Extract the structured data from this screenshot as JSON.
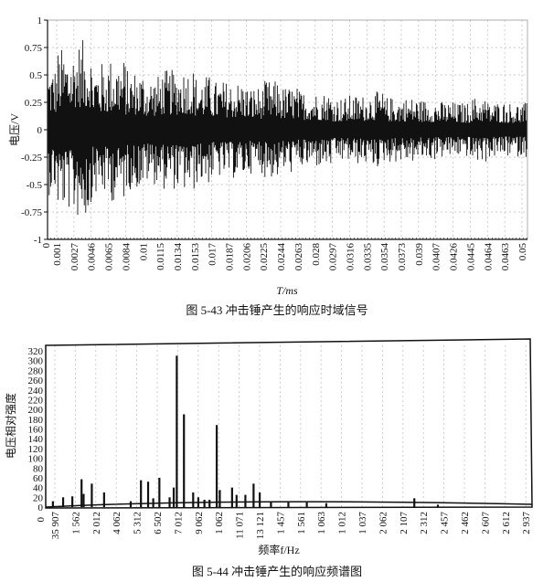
{
  "chart_data": [
    {
      "type": "line",
      "caption": "图 5-43   冲击锤产生的响应时域信号",
      "xlabel": "T/ms",
      "ylabel": "电压/V",
      "ylim": [
        -1,
        1
      ],
      "y_ticks": [
        "1",
        "0.75",
        "0.5",
        "0.25",
        "0",
        "-0.25",
        "-0.5",
        "-0.75",
        "-1"
      ],
      "x_ticks": [
        "0",
        "0.001",
        "0.0027",
        "0.0046",
        "0.0065",
        "0.0084",
        "0.01",
        "0.0115",
        "0.0134",
        "0.0153",
        "0.017",
        "0.0187",
        "0.0206",
        "0.0225",
        "0.0244",
        "0.0263",
        "0.028",
        "0.0297",
        "0.0316",
        "0.0335",
        "0.0354",
        "0.0373",
        "0.039",
        "0.0407",
        "0.0426",
        "0.0445",
        "0.0464",
        "0.0463",
        "0.05"
      ],
      "grid": true,
      "signal_envelope_by_tick": [
        0.6,
        0.75,
        0.82,
        0.62,
        0.66,
        0.55,
        0.5,
        0.55,
        0.58,
        0.5,
        0.45,
        0.45,
        0.4,
        0.45,
        0.4,
        0.36,
        0.35,
        0.3,
        0.32,
        0.35,
        0.3,
        0.3,
        0.28,
        0.26,
        0.25,
        0.3,
        0.26,
        0.25
      ],
      "color": "#111111"
    },
    {
      "type": "bar",
      "caption": "图 5-44   冲击锤产生的响应频谱图",
      "xlabel": "频率f/Hz",
      "ylabel": "电压相对强度",
      "ylim": [
        0,
        320
      ],
      "y_ticks": [
        "320",
        "300",
        "280",
        "260",
        "240",
        "220",
        "200",
        "180",
        "160",
        "140",
        "120",
        "100",
        "80",
        "60",
        "40",
        "20",
        "0"
      ],
      "x_origin_label": "0",
      "x_ticks": [
        "35 907",
        "1 562",
        "2 012",
        "4 062",
        "5 312",
        "6 502",
        "7 012",
        "9 062",
        "1 062",
        "11 071",
        "13 121",
        "1 457",
        "1 561",
        "1 063",
        "1 012",
        "1 037",
        "2 062",
        "2 107",
        "2 312",
        "2 457",
        "2 462",
        "2 607",
        "2 612",
        "2 937"
      ],
      "grid": true,
      "peaks_by_tick_position": [
        [
          -0.1,
          12
        ],
        [
          0.4,
          20
        ],
        [
          0.85,
          22
        ],
        [
          1.3,
          57
        ],
        [
          1.4,
          27
        ],
        [
          1.8,
          48
        ],
        [
          2.4,
          30
        ],
        [
          3.7,
          12
        ],
        [
          4.2,
          55
        ],
        [
          4.55,
          52
        ],
        [
          4.8,
          18
        ],
        [
          5.1,
          60
        ],
        [
          5.6,
          20
        ],
        [
          5.8,
          40
        ],
        [
          5.95,
          310
        ],
        [
          6.3,
          190
        ],
        [
          6.75,
          30
        ],
        [
          7.0,
          20
        ],
        [
          7.3,
          15
        ],
        [
          7.55,
          15
        ],
        [
          7.9,
          168
        ],
        [
          8.05,
          35
        ],
        [
          8.65,
          40
        ],
        [
          8.87,
          25
        ],
        [
          9.3,
          25
        ],
        [
          9.7,
          48
        ],
        [
          10.0,
          30
        ],
        [
          10.55,
          10
        ],
        [
          11.4,
          10
        ],
        [
          12.3,
          10
        ],
        [
          13.25,
          8
        ],
        [
          17.55,
          18
        ],
        [
          18.7,
          5
        ]
      ],
      "color": "#111111"
    }
  ]
}
